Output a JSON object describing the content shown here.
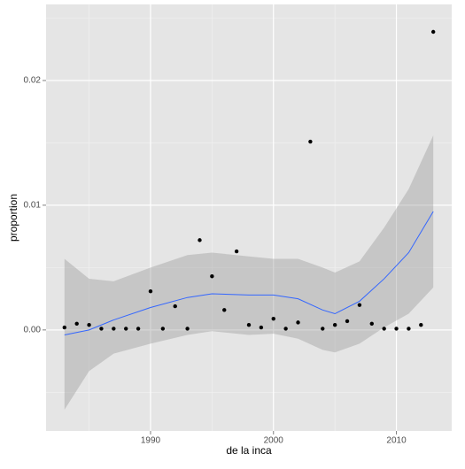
{
  "chart_data": {
    "type": "scatter",
    "x_label": "de la inca",
    "y_label": "proportion",
    "x": [
      1983,
      1984,
      1985,
      1986,
      1987,
      1988,
      1989,
      1990,
      1991,
      1992,
      1993,
      1994,
      1995,
      1996,
      1997,
      1998,
      1999,
      2000,
      2001,
      2002,
      2003,
      2004,
      2005,
      2006,
      2007,
      2008,
      2009,
      2010,
      2011,
      2012,
      2013
    ],
    "values": [
      0.0002,
      0.0005,
      0.0004,
      0.0001,
      0.0001,
      0.0001,
      0.0001,
      0.0031,
      0.0001,
      0.0019,
      0.0001,
      0.0072,
      0.0043,
      0.0016,
      0.0063,
      0.0004,
      0.0002,
      0.0009,
      0.0001,
      0.0006,
      0.0151,
      0.0001,
      0.0004,
      0.0007,
      0.002,
      0.0005,
      0.0001,
      0.0001,
      0.0001,
      0.0004,
      0.0239
    ],
    "color": "#000000",
    "smooth": {
      "color": "#3366FF",
      "band_color": "#999999",
      "x": [
        1983,
        1985,
        1987,
        1990,
        1993,
        1995,
        1998,
        2000,
        2002,
        2004,
        2005,
        2007,
        2009,
        2011,
        2013
      ],
      "values": [
        -0.0004,
        0.0,
        0.0008,
        0.0018,
        0.0026,
        0.0029,
        0.0028,
        0.0028,
        0.0025,
        0.0016,
        0.0013,
        0.0023,
        0.0041,
        0.0062,
        0.0095
      ],
      "lower": [
        -0.0064,
        -0.0033,
        -0.0019,
        -0.0011,
        -0.0004,
        -0.0001,
        -0.0004,
        -0.0003,
        -0.0007,
        -0.0016,
        -0.0018,
        -0.0011,
        0.0002,
        0.0013,
        0.0034
      ],
      "upper": [
        0.0057,
        0.0041,
        0.0039,
        0.005,
        0.006,
        0.0062,
        0.0059,
        0.0057,
        0.0057,
        0.005,
        0.0046,
        0.0055,
        0.0082,
        0.0113,
        0.0156
      ]
    },
    "xlim": [
      1981.5,
      2014.5
    ],
    "ylim": [
      -0.0081,
      0.0261
    ],
    "xticks": [
      1990,
      2000,
      2010
    ],
    "yticks": [
      {
        "value": 0,
        "label": "0.00"
      },
      0.01,
      0.02
    ],
    "xminor": [
      1985,
      1995,
      2005
    ],
    "yminor": [
      -0.005,
      0.005,
      0.015,
      0.025
    ],
    "grid": true
  }
}
